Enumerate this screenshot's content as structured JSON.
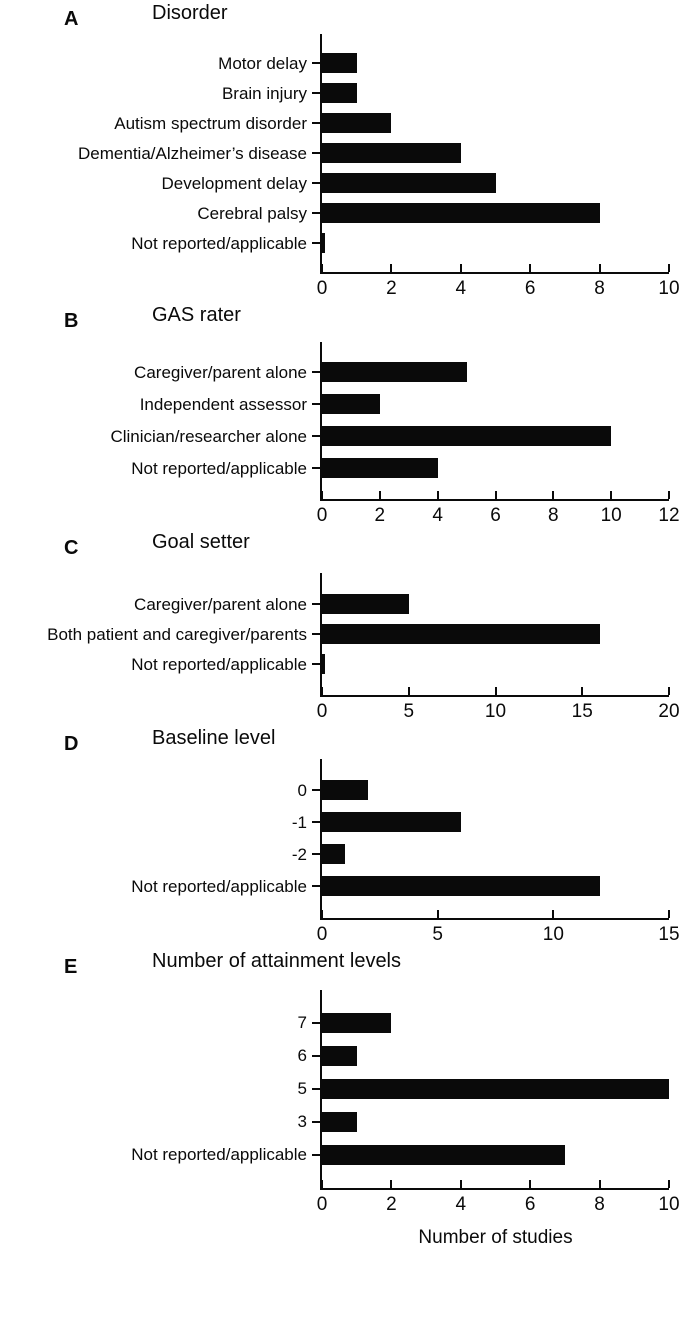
{
  "figure": {
    "xaxis_label": "Number of studies",
    "bar_color": "#0a0a0a",
    "background_color": "#ffffff"
  },
  "chart_data": [
    {
      "type": "bar",
      "panel": "A",
      "title": "Disorder",
      "orientation": "horizontal",
      "categories": [
        "Motor delay",
        "Brain injury",
        "Autism spectrum disorder",
        "Dementia/Alzheimer’s disease",
        "Development delay",
        "Cerebral palsy",
        "Not reported/applicable"
      ],
      "values": [
        1,
        1,
        2,
        4,
        5,
        8,
        0.1
      ],
      "xlim": [
        0,
        10
      ],
      "xticks": [
        0,
        2,
        4,
        6,
        8,
        10
      ],
      "xlabel": "",
      "ylabel": "",
      "bar_color": "#0a0a0a",
      "grid": false,
      "legend": false
    },
    {
      "type": "bar",
      "panel": "B",
      "title": "GAS rater",
      "orientation": "horizontal",
      "categories": [
        "Caregiver/parent alone",
        "Independent assessor",
        "Clinician/researcher alone",
        "Not reported/applicable"
      ],
      "values": [
        5,
        2,
        10,
        4
      ],
      "xlim": [
        0,
        12
      ],
      "xticks": [
        0,
        2,
        4,
        6,
        8,
        10,
        12
      ],
      "xlabel": "",
      "ylabel": "",
      "bar_color": "#0a0a0a",
      "grid": false,
      "legend": false
    },
    {
      "type": "bar",
      "panel": "C",
      "title": "Goal setter",
      "orientation": "horizontal",
      "categories": [
        "Caregiver/parent alone",
        "Both patient and caregiver/parents",
        "Not reported/applicable"
      ],
      "values": [
        5,
        16,
        0.2
      ],
      "xlim": [
        0,
        20
      ],
      "xticks": [
        0,
        5,
        10,
        15,
        20
      ],
      "xlabel": "",
      "ylabel": "",
      "bar_color": "#0a0a0a",
      "grid": false,
      "legend": false
    },
    {
      "type": "bar",
      "panel": "D",
      "title": "Baseline level",
      "orientation": "horizontal",
      "categories": [
        "0",
        "-1",
        "-2",
        "Not reported/applicable"
      ],
      "values": [
        2,
        6,
        1,
        12
      ],
      "xlim": [
        0,
        15
      ],
      "xticks": [
        0,
        5,
        10,
        15
      ],
      "xlabel": "",
      "ylabel": "",
      "bar_color": "#0a0a0a",
      "grid": false,
      "legend": false
    },
    {
      "type": "bar",
      "panel": "E",
      "title": "Number of attainment levels",
      "orientation": "horizontal",
      "categories": [
        "7",
        "6",
        "5",
        "3",
        "Not reported/applicable"
      ],
      "values": [
        2,
        1,
        10,
        1,
        7
      ],
      "xlim": [
        0,
        10
      ],
      "xticks": [
        0,
        2,
        4,
        6,
        8,
        10
      ],
      "xlabel": "Number of studies",
      "ylabel": "",
      "bar_color": "#0a0a0a",
      "grid": false,
      "legend": false
    }
  ]
}
